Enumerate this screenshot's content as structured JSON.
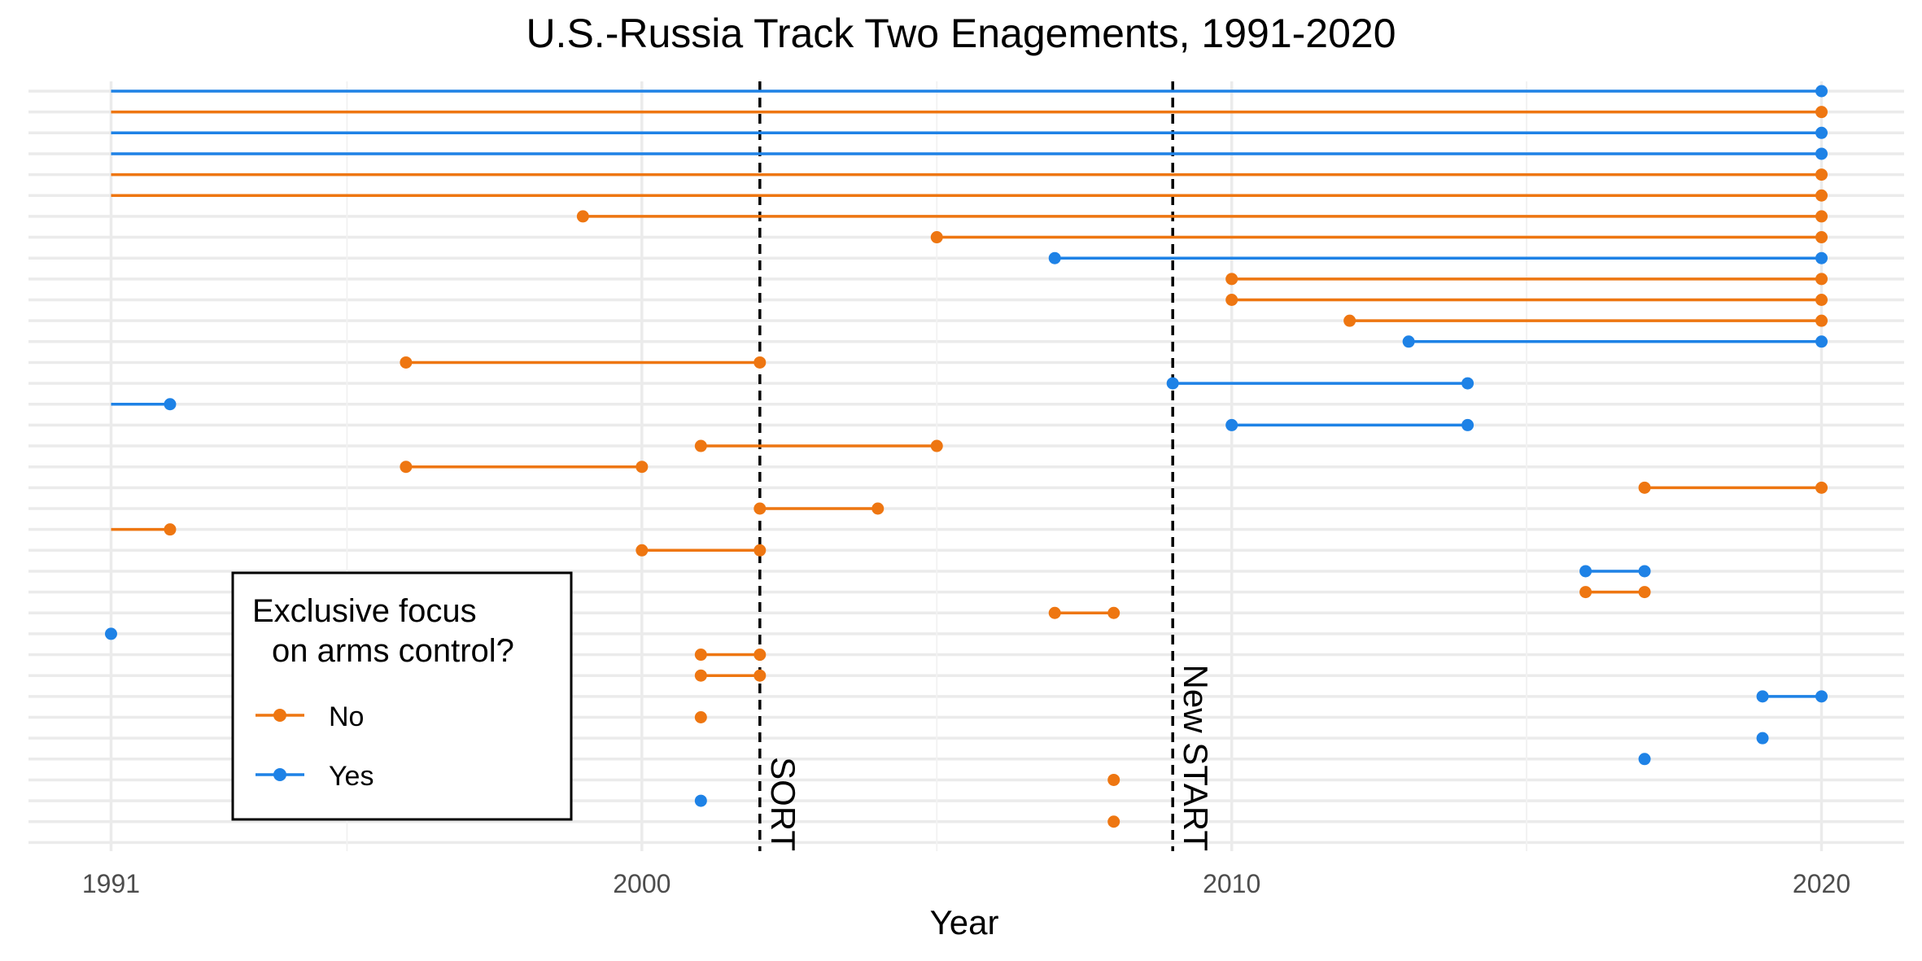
{
  "chart_data": {
    "type": "line",
    "title": "U.S.-Russia Track Two Enagements, 1991-2020",
    "xlabel": "Year",
    "ylabel": "",
    "xlim": [
      1989.6,
      2021.4
    ],
    "x_ticks": [
      "1991",
      "2000",
      "2010",
      "2020"
    ],
    "x_tick_values": [
      1991,
      2000,
      2010,
      2020
    ],
    "grid": true,
    "colors": {
      "No": "#EE7611",
      "Yes": "#1E82E6"
    },
    "reference_lines": [
      {
        "label": "SORT",
        "x": 2002
      },
      {
        "label": "New START",
        "x": 2009
      }
    ],
    "legend": {
      "title_line1": "Exclusive focus",
      "title_line2": "on arms control?",
      "placement": "bottom-left",
      "entries": [
        {
          "name": "No",
          "color": "#EE7611"
        },
        {
          "name": "Yes",
          "color": "#1E82E6"
        }
      ]
    },
    "engagements": [
      {
        "start": 1991,
        "end": 2020,
        "focus": "Yes",
        "start_point": false
      },
      {
        "start": 1991,
        "end": 2020,
        "focus": "No",
        "start_point": false
      },
      {
        "start": 1991,
        "end": 2020,
        "focus": "Yes",
        "start_point": false
      },
      {
        "start": 1991,
        "end": 2020,
        "focus": "Yes",
        "start_point": false
      },
      {
        "start": 1991,
        "end": 2020,
        "focus": "No",
        "start_point": false
      },
      {
        "start": 1991,
        "end": 2020,
        "focus": "No",
        "start_point": false
      },
      {
        "start": 1999,
        "end": 2020,
        "focus": "No",
        "start_point": true
      },
      {
        "start": 2005,
        "end": 2020,
        "focus": "No",
        "start_point": true
      },
      {
        "start": 2007,
        "end": 2020,
        "focus": "Yes",
        "start_point": true
      },
      {
        "start": 2010,
        "end": 2020,
        "focus": "No",
        "start_point": true
      },
      {
        "start": 2010,
        "end": 2020,
        "focus": "No",
        "start_point": true
      },
      {
        "start": 2012,
        "end": 2020,
        "focus": "No",
        "start_point": true
      },
      {
        "start": 2013,
        "end": 2020,
        "focus": "Yes",
        "start_point": true
      },
      {
        "start": 1996,
        "end": 2002,
        "focus": "No",
        "start_point": true
      },
      {
        "start": 2009,
        "end": 2014,
        "focus": "Yes",
        "start_point": true
      },
      {
        "start": 1991,
        "end": 1992,
        "focus": "Yes",
        "start_point": false
      },
      {
        "start": 2010,
        "end": 2014,
        "focus": "Yes",
        "start_point": true
      },
      {
        "start": 2001,
        "end": 2005,
        "focus": "No",
        "start_point": true
      },
      {
        "start": 1996,
        "end": 2000,
        "focus": "No",
        "start_point": true
      },
      {
        "start": 2017,
        "end": 2020,
        "focus": "No",
        "start_point": true
      },
      {
        "start": 2002,
        "end": 2004,
        "focus": "No",
        "start_point": true
      },
      {
        "start": 1991,
        "end": 1992,
        "focus": "No",
        "start_point": false
      },
      {
        "start": 2000,
        "end": 2002,
        "focus": "No",
        "start_point": true
      },
      {
        "start": 2016,
        "end": 2017,
        "focus": "Yes",
        "start_point": true
      },
      {
        "start": 2016,
        "end": 2017,
        "focus": "No",
        "start_point": true
      },
      {
        "start": 2007,
        "end": 2008,
        "focus": "No",
        "start_point": true
      },
      {
        "start": 1991,
        "end": 1991,
        "focus": "Yes",
        "start_point": true
      },
      {
        "start": 2001,
        "end": 2002,
        "focus": "No",
        "start_point": true
      },
      {
        "start": 2001,
        "end": 2002,
        "focus": "No",
        "start_point": true
      },
      {
        "start": 2019,
        "end": 2020,
        "focus": "Yes",
        "start_point": true
      },
      {
        "start": 2001,
        "end": 2001,
        "focus": "No",
        "start_point": true
      },
      {
        "start": 2019,
        "end": 2019,
        "focus": "Yes",
        "start_point": true
      },
      {
        "start": 2017,
        "end": 2017,
        "focus": "Yes",
        "start_point": true
      },
      {
        "start": 2008,
        "end": 2008,
        "focus": "No",
        "start_point": true
      },
      {
        "start": 2001,
        "end": 2001,
        "focus": "Yes",
        "start_point": true
      },
      {
        "start": 2008,
        "end": 2008,
        "focus": "No",
        "start_point": true
      }
    ],
    "empty_rows": [
      37
    ]
  }
}
